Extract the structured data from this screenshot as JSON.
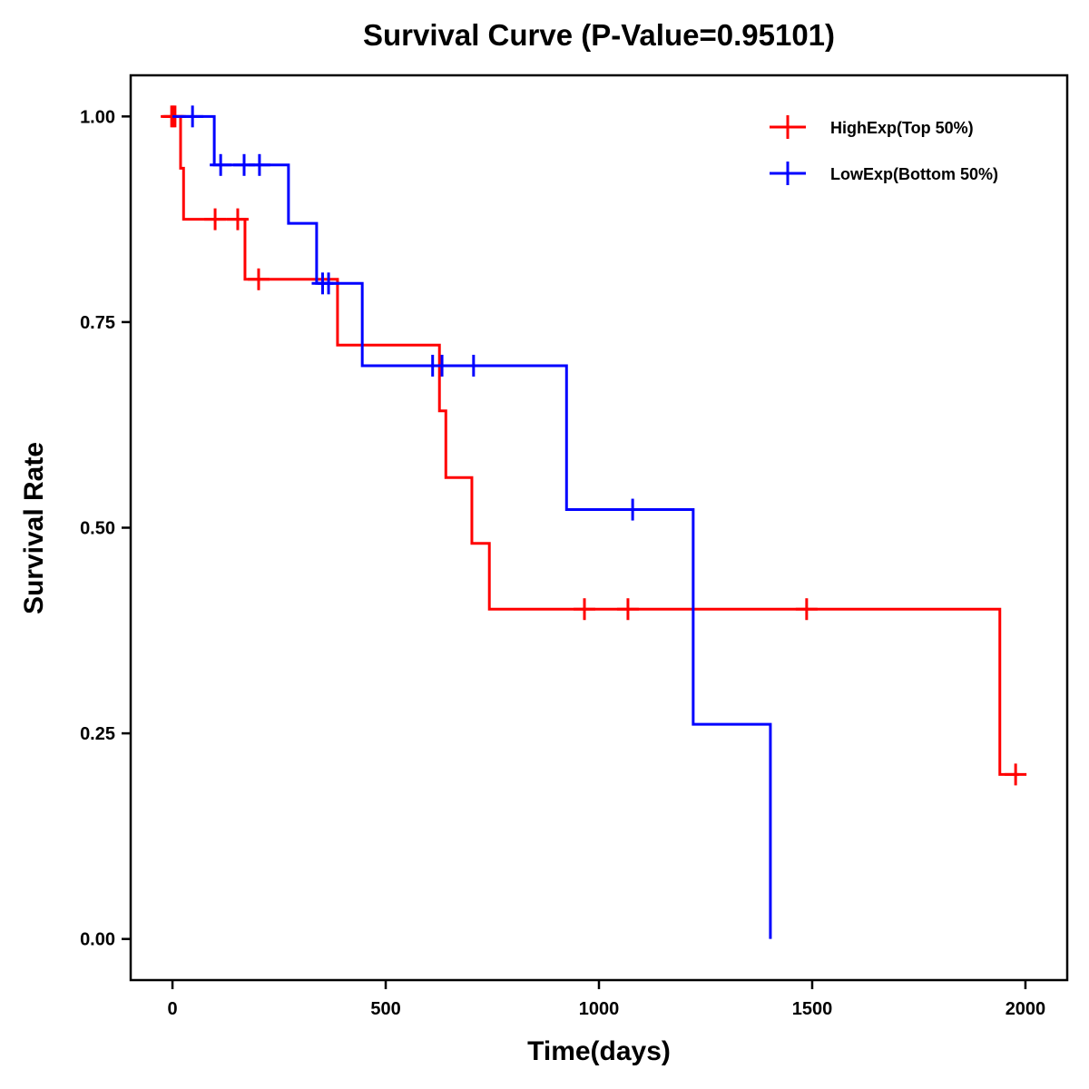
{
  "chart_data": {
    "type": "line",
    "subtype": "kaplan-meier-step",
    "title": "Survival Curve (P-Value=0.95101)",
    "xlabel": "Time(days)",
    "ylabel": "Survival Rate",
    "xlim": [
      -98,
      2098
    ],
    "ylim": [
      -0.05,
      1.05
    ],
    "xticks": [
      0,
      500,
      1000,
      1500,
      2000
    ],
    "xtick_labels": [
      "0",
      "500",
      "1000",
      "1500",
      "2000"
    ],
    "yticks": [
      0,
      0.25,
      0.5,
      0.75,
      1.0
    ],
    "ytick_labels": [
      "0.00",
      "0.25",
      "0.50",
      "0.75",
      "1.00"
    ],
    "grid": false,
    "legend_position": "top-right",
    "series": [
      {
        "name": "HighExp(Top 50%)",
        "color": "#ff0000",
        "steps": [
          {
            "t": 0,
            "s": 1.0
          },
          {
            "t": 19,
            "s": 0.937
          },
          {
            "t": 26,
            "s": 0.875
          },
          {
            "t": 170,
            "s": 0.802
          },
          {
            "t": 387,
            "s": 0.722
          },
          {
            "t": 626,
            "s": 0.642
          },
          {
            "t": 641,
            "s": 0.561
          },
          {
            "t": 702,
            "s": 0.481
          },
          {
            "t": 743,
            "s": 0.401
          },
          {
            "t": 1940,
            "s": 0.2
          }
        ],
        "end_time": 1977,
        "censored": [
          {
            "t": -2,
            "s": 1.0
          },
          {
            "t": 2,
            "s": 1.0
          },
          {
            "t": 6,
            "s": 1.0
          },
          {
            "t": 100,
            "s": 0.875
          },
          {
            "t": 153,
            "s": 0.875
          },
          {
            "t": 202,
            "s": 0.802
          },
          {
            "t": 966,
            "s": 0.401
          },
          {
            "t": 1068,
            "s": 0.401
          },
          {
            "t": 1487,
            "s": 0.401
          },
          {
            "t": 1977,
            "s": 0.2
          }
        ]
      },
      {
        "name": "LowExp(Bottom 50%)",
        "color": "#0000ff",
        "steps": [
          {
            "t": 0,
            "s": 1.0
          },
          {
            "t": 98,
            "s": 0.941
          },
          {
            "t": 272,
            "s": 0.87
          },
          {
            "t": 338,
            "s": 0.797
          },
          {
            "t": 445,
            "s": 0.697
          },
          {
            "t": 924,
            "s": 0.522
          },
          {
            "t": 1221,
            "s": 0.261
          },
          {
            "t": 1402,
            "s": 0.0
          }
        ],
        "end_time": 1402,
        "censored": [
          {
            "t": 47,
            "s": 1.0
          },
          {
            "t": 113,
            "s": 0.941
          },
          {
            "t": 168,
            "s": 0.941
          },
          {
            "t": 204,
            "s": 0.941
          },
          {
            "t": 352,
            "s": 0.797
          },
          {
            "t": 366,
            "s": 0.797
          },
          {
            "t": 610,
            "s": 0.697
          },
          {
            "t": 632,
            "s": 0.697
          },
          {
            "t": 706,
            "s": 0.697
          },
          {
            "t": 1079,
            "s": 0.522
          }
        ]
      }
    ]
  }
}
